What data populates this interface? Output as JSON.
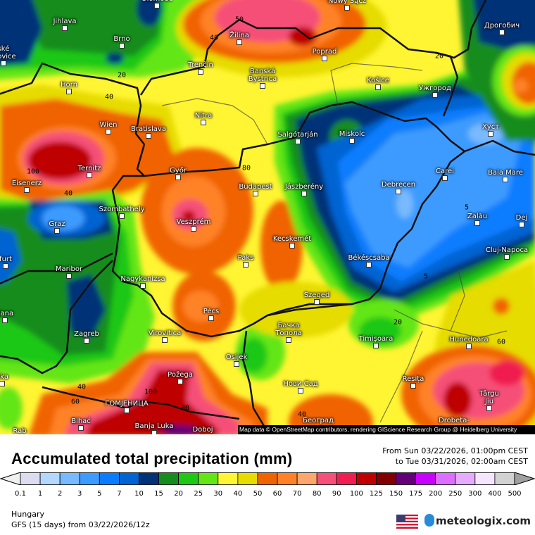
{
  "map": {
    "region": "Hungary",
    "attribution": "Map data © OpenStreetMap contributors, rendering GIScience Research Group @ Heidelberg University",
    "cities": [
      "Olomouc",
      "Jihlava",
      "Brno",
      "ské\nejovice",
      "Horn",
      "Wien",
      "Bratislava",
      "Ternitz",
      "Eisenerz",
      "Trenčín",
      "Žilina",
      "Banská\nBystrica",
      "Nitra",
      "Győr",
      "Budapest",
      "Veszprém",
      "Szombathely",
      "Graz",
      "Maribor",
      "Nagykanizsa",
      "Pécs",
      "Zagreb",
      "Virovitica",
      "Paks",
      "Kecskemét",
      "Szeged",
      "Békéscsaba",
      "Debrecen",
      "Jászberény",
      "Salgótarján",
      "Miskolc",
      "Košice",
      "Poprad",
      "Nowy Sącz",
      "Ужгород",
      "Дрогобич",
      "Хуст",
      "Carei",
      "Baia Mare",
      "Zalău",
      "Dej",
      "Cluj-Napoca",
      "Hunedoara",
      "Timișoara",
      "Reșița",
      "Târgu\nJiu",
      "Drobeta-",
      "Бачка\nТопола",
      "Нови Сад",
      "Београд",
      "Osijek",
      "Požega",
      "ГОМЈЕНИЦА",
      "Bihać",
      "Banja Luka",
      "Doboj",
      "eka",
      "ljana",
      "furt",
      "Rab"
    ],
    "contour_labels": [
      "20",
      "40",
      "40",
      "50",
      "80",
      "100",
      "40",
      "20",
      "5",
      "5",
      "20",
      "60",
      "40",
      "60",
      "100",
      "80",
      "40"
    ]
  },
  "legend": {
    "title": "Accumulated total precipitation (mm)",
    "period_from": "From Sun 03/22/2026, 01:00pm CEST",
    "period_to": "to Tue 03/31/2026, 02:00am CEST",
    "tick_labels": [
      "0.1",
      "1",
      "2",
      "3",
      "5",
      "7",
      "10",
      "15",
      "20",
      "25",
      "30",
      "40",
      "50",
      "60",
      "70",
      "80",
      "90",
      "100",
      "125",
      "150",
      "175",
      "200",
      "250",
      "300",
      "400",
      "500"
    ],
    "colors": [
      "#dcdcf0",
      "#b4d7ff",
      "#78b9ff",
      "#3c9bff",
      "#0a7dff",
      "#0064d2",
      "#003278",
      "#148c1e",
      "#1ec814",
      "#64e614",
      "#fff532",
      "#e6dc00",
      "#f06400",
      "#ff8228",
      "#ffa56e",
      "#f55078",
      "#f01e50",
      "#be0000",
      "#820000",
      "#640078",
      "#c800ff",
      "#dc6eff",
      "#e6aaff",
      "#f5e6ff",
      "#d2d2d2"
    ],
    "under_color": "#f0f0f0",
    "over_color": "#a0a0a0"
  },
  "footer": {
    "region": "Hungary",
    "model": "GFS (15 days) from  03/22/2026/12z",
    "brand": "meteologix.com",
    "flag_icon": "us-flag-icon"
  }
}
